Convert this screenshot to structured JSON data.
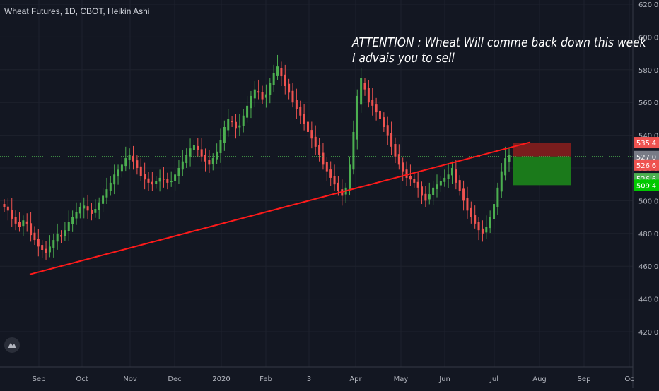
{
  "header": {
    "title": "Wheat Futures, 1D, CBOT, Heikin Ashi"
  },
  "annotation": {
    "line1": "ATTENTION : Wheat Will comme back down this week",
    "line2": "I advais you to sell"
  },
  "colors": {
    "background": "#131722",
    "up": "#26a69a",
    "up_candle": "#4caf50",
    "down": "#ef5350",
    "trendline": "#ff1a1a",
    "stop_zone": "#7a1d1d",
    "target_zone": "#1b7a1b",
    "grid": "#1e222d"
  },
  "chart_data": {
    "type": "candlestick",
    "title": "Wheat Futures, 1D, CBOT, Heikin Ashi",
    "y_axis": {
      "ticks": [
        "420'0",
        "440'0",
        "460'0",
        "480'0",
        "500'0",
        "520'0",
        "540'0",
        "560'0",
        "580'0",
        "600'0",
        "620'0"
      ],
      "values": [
        420,
        440,
        460,
        480,
        500,
        520,
        540,
        560,
        580,
        600,
        620
      ],
      "range": [
        410,
        623
      ]
    },
    "x_axis": {
      "ticks": [
        "Sep",
        "Oct",
        "Nov",
        "Dec",
        "2020",
        "Feb",
        "3",
        "Apr",
        "May",
        "Jun",
        "Jul",
        "Aug",
        "Sep",
        "Oc"
      ]
    },
    "price_labels": [
      {
        "text": "535'4",
        "value": 535.5,
        "color": "#ef5350"
      },
      {
        "text": "527'0",
        "value": 527.0,
        "color": "#787b86"
      },
      {
        "text": "526'6",
        "value": 521.8,
        "color": "#ef5350"
      },
      {
        "text": "526'6",
        "value": 513.5,
        "color": "#4caf50"
      },
      {
        "text": "509'4",
        "value": 509.5,
        "color": "#00c800"
      }
    ],
    "series_close": [
      496,
      494,
      489,
      486,
      484,
      488,
      486,
      479,
      476,
      472,
      470,
      468,
      472,
      476,
      480,
      478,
      482,
      487,
      490,
      493,
      496,
      497,
      494,
      492,
      495,
      499,
      503,
      507,
      511,
      516,
      519,
      522,
      526,
      528,
      524,
      520,
      515,
      513,
      511,
      510,
      512,
      514,
      513,
      511,
      512,
      516,
      520,
      524,
      528,
      532,
      534,
      531,
      527,
      524,
      522,
      526,
      530,
      537,
      545,
      550,
      548,
      544,
      546,
      552,
      558,
      564,
      568,
      566,
      562,
      565,
      572,
      578,
      582,
      576,
      570,
      566,
      560,
      556,
      552,
      547,
      542,
      538,
      533,
      528,
      522,
      518,
      514,
      510,
      506,
      503,
      508,
      522,
      542,
      564,
      575,
      568,
      560,
      558,
      554,
      550,
      545,
      540,
      533,
      527,
      522,
      518,
      514,
      513,
      511,
      508,
      503,
      500,
      504,
      508,
      510,
      512,
      514,
      516,
      520,
      511,
      506,
      500,
      494,
      490,
      486,
      482,
      480,
      484,
      490,
      498,
      508,
      518,
      526,
      528
    ],
    "trendline": {
      "start": {
        "value": 455
      },
      "end": {
        "value": 528
      }
    },
    "position": {
      "stop_top": 535.5,
      "entry": 527.0,
      "target_bottom": 509.5
    }
  }
}
